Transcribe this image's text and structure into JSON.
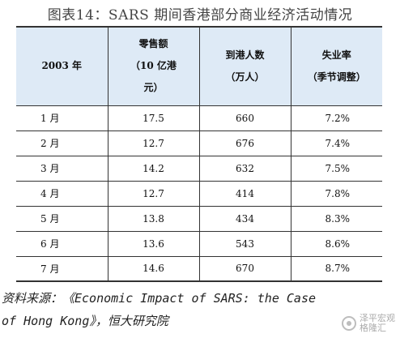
{
  "figure": {
    "title": "图表14：SARS 期间香港部分商业经济活动情况"
  },
  "table": {
    "headers": [
      {
        "lines": [
          "2003 年"
        ]
      },
      {
        "lines": [
          "零售额",
          "（10 亿港",
          "元）"
        ]
      },
      {
        "lines": [
          "到港人数",
          "（万人）"
        ]
      },
      {
        "lines": [
          "失业率",
          "（季节调整）"
        ]
      }
    ],
    "rows": [
      {
        "month": "1 月",
        "retail": "17.5",
        "visitors": "660",
        "unemployment": "7.2%"
      },
      {
        "month": "2 月",
        "retail": "12.7",
        "visitors": "676",
        "unemployment": "7.4%"
      },
      {
        "month": "3 月",
        "retail": "14.2",
        "visitors": "632",
        "unemployment": "7.5%"
      },
      {
        "month": "4 月",
        "retail": "12.7",
        "visitors": "414",
        "unemployment": "7.8%"
      },
      {
        "month": "5 月",
        "retail": "13.8",
        "visitors": "434",
        "unemployment": "8.3%"
      },
      {
        "month": "6 月",
        "retail": "13.6",
        "visitors": "543",
        "unemployment": "8.6%"
      },
      {
        "month": "7 月",
        "retail": "14.6",
        "visitors": "670",
        "unemployment": "8.7%"
      }
    ]
  },
  "source": {
    "line1": "资料来源：《Economic Impact of SARS: the Case",
    "line2": "of Hong Kong》，恒大研究院"
  },
  "watermark": {
    "line1": "泽平宏观",
    "line2": "格隆汇"
  }
}
